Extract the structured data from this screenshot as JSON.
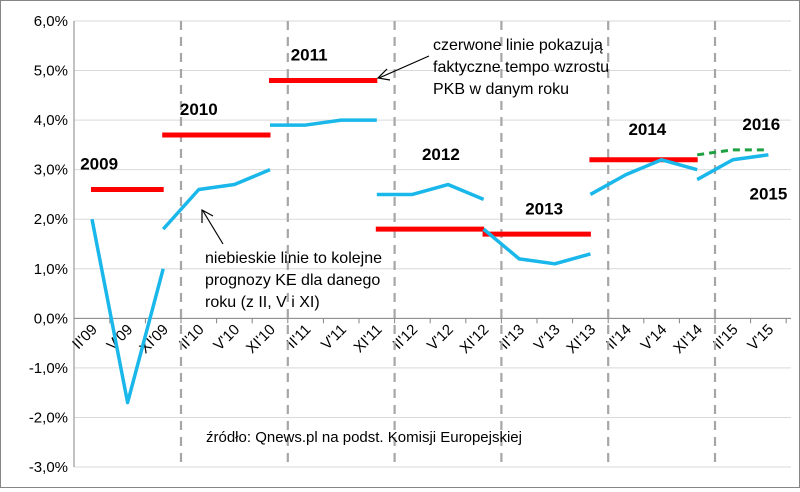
{
  "chart_data": {
    "type": "line",
    "title": "",
    "xlabel": "",
    "ylabel": "",
    "ylim": [
      -3.0,
      6.0
    ],
    "y_ticks": [
      "-3,0%",
      "-2,0%",
      "-1,0%",
      "0,0%",
      "1,0%",
      "2,0%",
      "3,0%",
      "4,0%",
      "5,0%",
      "6,0%"
    ],
    "categories": [
      "II'09",
      "V'09",
      "XI'09",
      "II'10",
      "V'10",
      "XI'10",
      "II'11",
      "V'11",
      "XI'11",
      "II'12",
      "V'12",
      "XI'12",
      "II'13",
      "V'13",
      "XI'13",
      "II'14",
      "V'14",
      "XI'14",
      "II'15",
      "V'15"
    ],
    "forecast_series": [
      {
        "year": "2009",
        "values": [
          2.0,
          -1.7,
          1.0
        ],
        "start_index": 0
      },
      {
        "year": "2010",
        "values": [
          1.8,
          2.6,
          2.7,
          3.0
        ],
        "start_index": 2
      },
      {
        "year": "2011",
        "values": [
          3.9,
          3.9,
          4.0,
          4.0
        ],
        "start_index": 5
      },
      {
        "year": "2012",
        "values": [
          2.5,
          2.5,
          2.7,
          2.4
        ],
        "start_index": 8
      },
      {
        "year": "2013",
        "values": [
          1.8,
          1.2,
          1.1,
          1.3
        ],
        "start_index": 11
      },
      {
        "year": "2014",
        "values": [
          2.5,
          2.9,
          3.2,
          3.0
        ],
        "start_index": 14
      },
      {
        "year": "2015",
        "values": [
          2.8,
          3.2,
          3.3
        ],
        "start_index": 17
      }
    ],
    "actual_growth": [
      {
        "year": "2009",
        "value": 2.6,
        "from": 0,
        "to": 2
      },
      {
        "year": "2010",
        "value": 3.7,
        "from": 2,
        "to": 5
      },
      {
        "year": "2011",
        "value": 4.8,
        "from": 5,
        "to": 8
      },
      {
        "year": "2012",
        "value": 1.8,
        "from": 8,
        "to": 11
      },
      {
        "year": "2013",
        "value": 1.7,
        "from": 11,
        "to": 14
      },
      {
        "year": "2014",
        "value": 3.2,
        "from": 14,
        "to": 17
      }
    ],
    "projection_2016": {
      "year": "2016",
      "values": [
        3.3,
        3.4,
        3.4
      ],
      "start_index": 17
    },
    "year_dividers_after_index": [
      2,
      5,
      8,
      11,
      14,
      17
    ],
    "year_labels": [
      {
        "text": "2009",
        "x_index": 0.2,
        "y": 3.0
      },
      {
        "text": "2010",
        "x_index": 3.0,
        "y": 4.1
      },
      {
        "text": "2011",
        "x_index": 6.1,
        "y": 5.2
      },
      {
        "text": "2012",
        "x_index": 9.8,
        "y": 3.2
      },
      {
        "text": "2013",
        "x_index": 12.7,
        "y": 2.1
      },
      {
        "text": "2014",
        "x_index": 15.6,
        "y": 3.7
      },
      {
        "text": "2015",
        "x_index": 19.0,
        "y": 2.4
      },
      {
        "text": "2016",
        "x_index": 18.8,
        "y": 3.8
      }
    ],
    "grid": true,
    "colors": {
      "forecast": "#1ab7ea",
      "actual": "#ff0000",
      "projection": "#1ea142",
      "divider": "#a6a6a6",
      "grid": "#d9d9d9"
    }
  },
  "annotations": {
    "red_lines_note": [
      "czerwone linie pokazują",
      "faktyczne tempo wzrostu",
      "PKB w danym roku"
    ],
    "blue_lines_note": [
      "niebieskie  linie to kolejne",
      "prognozy KE dla danego",
      "roku (z II, V i XI)"
    ],
    "source": "źródło: Qnews.pl na podst. Komisji Europejskiej"
  }
}
